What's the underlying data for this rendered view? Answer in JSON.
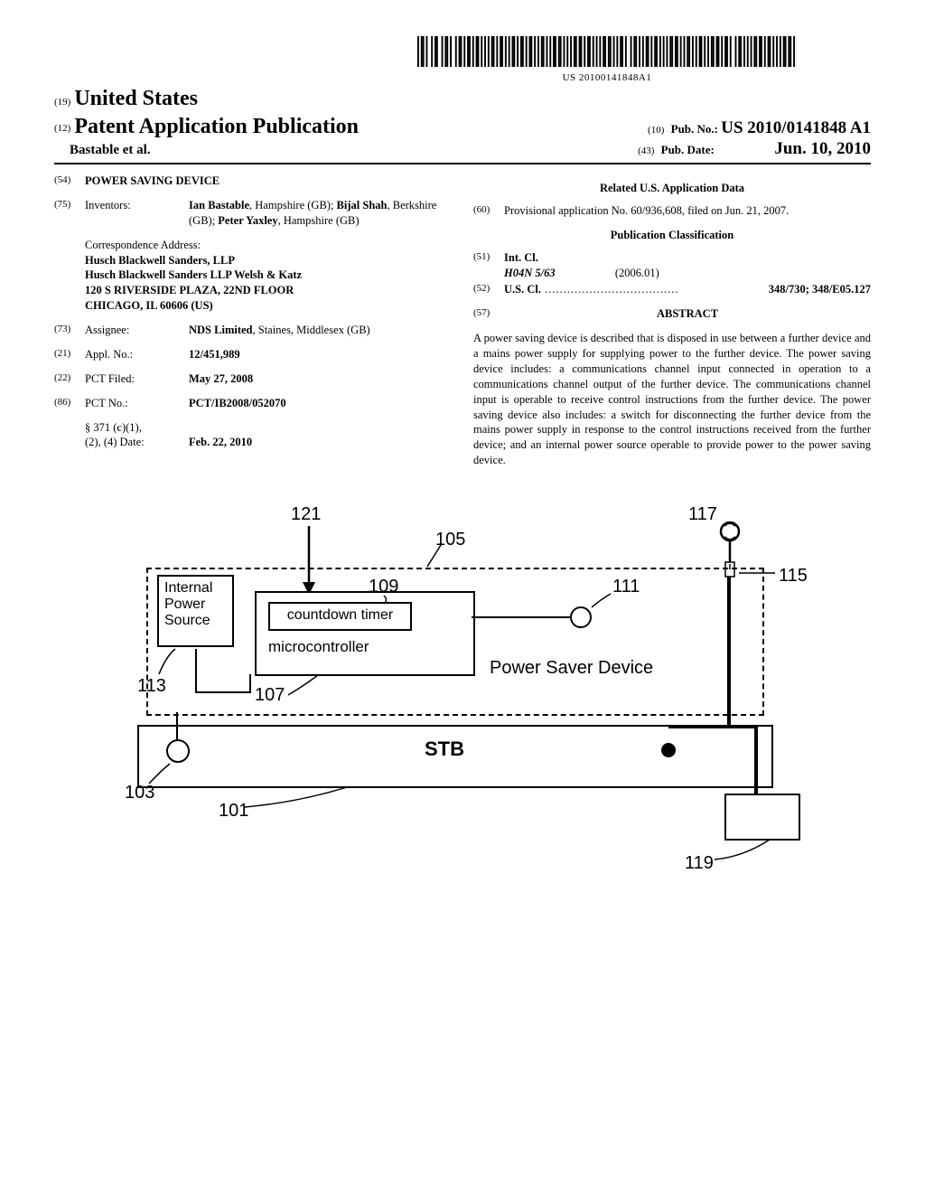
{
  "barcode": {
    "bars": "1011010010110010110100101101011010110101010110101101010110101101011010101101010110110101010110110101101010101101101010110100101101010110101101010101101101010110101011010101101101011010010110101010110110101101010101101101010",
    "number": "US 20100141848A1"
  },
  "header": {
    "country_num": "(19)",
    "country": "United States",
    "pub_type_num": "(12)",
    "pub_type": "Patent Application Publication",
    "pub_no_num": "(10)",
    "pub_no_label": "Pub. No.:",
    "pub_no": "US 2010/0141848 A1",
    "authors": "Bastable et al.",
    "pub_date_num": "(43)",
    "pub_date_label": "Pub. Date:",
    "pub_date": "Jun. 10, 2010"
  },
  "left_col": {
    "title_num": "(54)",
    "title": "POWER SAVING DEVICE",
    "inventors_num": "(75)",
    "inventors_label": "Inventors:",
    "inventors": "Ian Bastable, Hampshire (GB); Bijal Shah, Berkshire (GB); Peter Yaxley, Hampshire (GB)",
    "correspondence_label": "Correspondence Address:",
    "correspondence": "Husch Blackwell Sanders, LLP\nHusch Blackwell Sanders LLP Welsh & Katz\n120 S RIVERSIDE PLAZA, 22ND FLOOR\nCHICAGO, IL 60606 (US)",
    "assignee_num": "(73)",
    "assignee_label": "Assignee:",
    "assignee_bold": "NDS Limited",
    "assignee_rest": ", Staines, Middlesex (GB)",
    "appl_num": "(21)",
    "appl_label": "Appl. No.:",
    "appl_val": "12/451,989",
    "pct_filed_num": "(22)",
    "pct_filed_label": "PCT Filed:",
    "pct_filed_val": "May 27, 2008",
    "pct_no_num": "(86)",
    "pct_no_label": "PCT No.:",
    "pct_no_val": "PCT/IB2008/052070",
    "s371_label": "§ 371 (c)(1),\n(2), (4) Date:",
    "s371_val": "Feb. 22, 2010"
  },
  "right_col": {
    "related_heading": "Related U.S. Application Data",
    "provisional_num": "(60)",
    "provisional": "Provisional application No. 60/936,608, filed on Jun. 21, 2007.",
    "pub_class_heading": "Publication Classification",
    "intcl_num": "(51)",
    "intcl_label": "Int. Cl.",
    "intcl_code": "H04N 5/63",
    "intcl_year": "(2006.01)",
    "uscl_num": "(52)",
    "uscl_label": "U.S. Cl.",
    "uscl_val": "348/730; 348/E05.127",
    "abstract_num": "(57)",
    "abstract_heading": "ABSTRACT",
    "abstract_text": "A power saving device is described that is disposed in use between a further device and a mains power supply for supplying power to the further device. The power saving device includes: a communications channel input connected in operation to a communications channel output of the further device. The communications channel input is operable to receive control instructions from the further device. The power saving device also includes: a switch for disconnecting the further device from the mains power supply in response to the control instructions received from the further device; and an internal power source operable to provide power to the power saving device."
  },
  "diagram": {
    "refs": {
      "r121": "121",
      "r105": "105",
      "r117": "117",
      "r115": "115",
      "r109": "109",
      "r111": "111",
      "r113": "113",
      "r107": "107",
      "r103": "103",
      "r101": "101",
      "r119": "119"
    },
    "labels": {
      "ips": "Internal\nPower\nSource",
      "timer": "countdown timer",
      "micro": "microcontroller",
      "psd": "Power Saver Device",
      "stb": "STB"
    }
  }
}
